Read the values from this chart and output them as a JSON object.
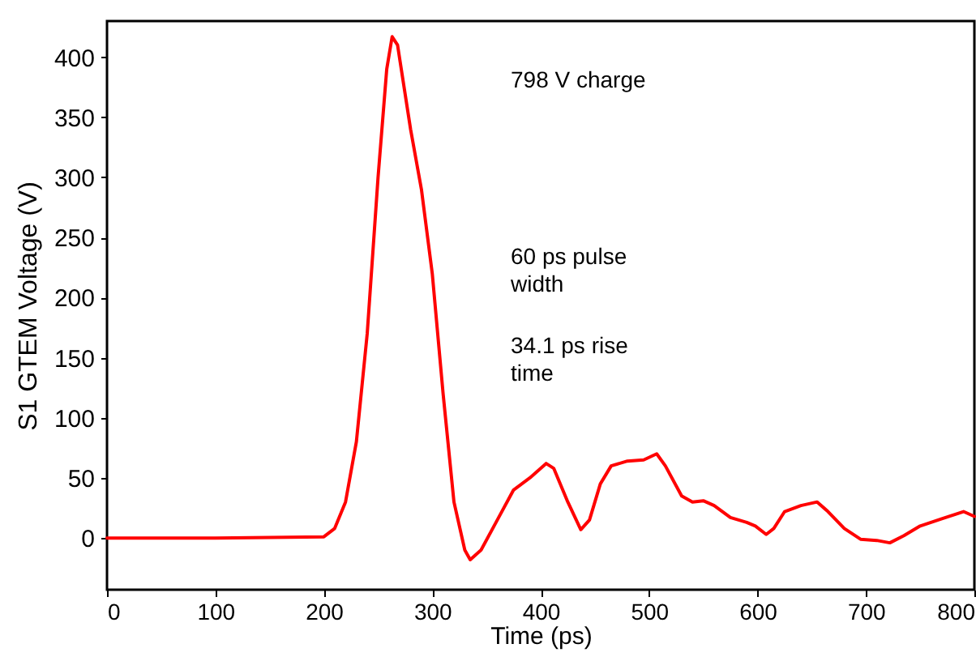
{
  "chart_data": {
    "type": "line",
    "xlabel": "Time (ps)",
    "ylabel": "S1 GTEM Voltage (V)",
    "annotations": [
      "798 V charge",
      "60 ps pulse\nwidth",
      "34.1 ps rise\ntime"
    ],
    "xlim": [
      0,
      800
    ],
    "xticks": [
      0,
      100,
      200,
      300,
      400,
      500,
      600,
      700,
      800
    ],
    "ylim": [
      -43,
      430
    ],
    "yticks": [
      0,
      50,
      100,
      150,
      200,
      250,
      300,
      350,
      400
    ],
    "grid": false,
    "marker": "none",
    "line_style": "solid",
    "series": [
      {
        "color": "#ff0000",
        "x": [
          0,
          100,
          200,
          210,
          220,
          230,
          240,
          250,
          258,
          263,
          268,
          280,
          290,
          300,
          310,
          320,
          330,
          335,
          345,
          360,
          375,
          390,
          405,
          412,
          425,
          437,
          445,
          455,
          465,
          480,
          495,
          507,
          515,
          530,
          540,
          550,
          560,
          575,
          590,
          598,
          608,
          615,
          625,
          640,
          655,
          665,
          680,
          695,
          710,
          722,
          735,
          750,
          770,
          790,
          800
        ],
        "values": [
          0,
          0,
          1,
          8,
          30,
          80,
          170,
          300,
          390,
          417,
          410,
          340,
          290,
          220,
          120,
          30,
          -10,
          -18,
          -10,
          15,
          40,
          50,
          62,
          58,
          30,
          7,
          15,
          45,
          60,
          64,
          65,
          70,
          60,
          35,
          30,
          31,
          27,
          17,
          13,
          10,
          3,
          8,
          22,
          27,
          30,
          22,
          8,
          -1,
          -2,
          -4,
          2,
          10,
          16,
          22,
          18
        ]
      }
    ]
  }
}
